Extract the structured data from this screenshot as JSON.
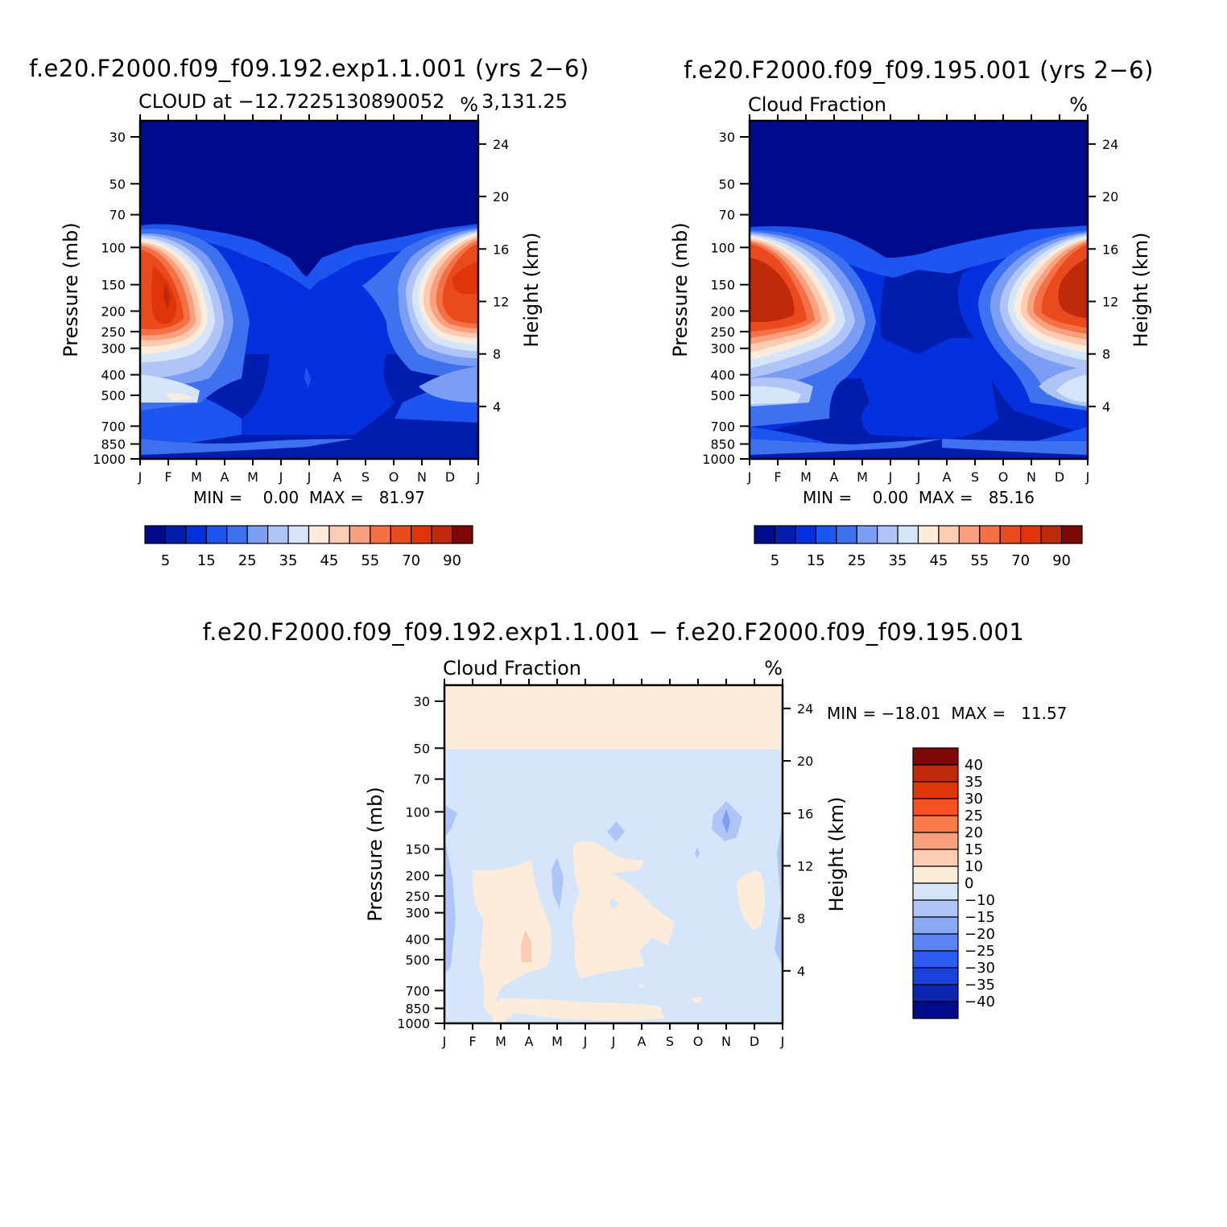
{
  "panels": {
    "top_left": {
      "title": "f.e20.F2000.f09_f09.192.exp1.1.001 (yrs 2−6)",
      "subtitle": "CLOUD at −12.7225130890052",
      "subtitle_extra": "3,131.25",
      "units": "%",
      "min_max": "MIN =    0.00  MAX =   81.97"
    },
    "top_right": {
      "title": "f.e20.F2000.f09_f09.195.001 (yrs 2−6)",
      "subtitle": "Cloud Fraction",
      "units": "%",
      "min_max": "MIN =    0.00  MAX =   85.16"
    },
    "bottom": {
      "title": "f.e20.F2000.f09_f09.192.exp1.1.001 − f.e20.F2000.f09_f09.195.001",
      "subtitle": "Cloud Fraction",
      "units": "%",
      "min_max": "MIN = −18.01  MAX =   11.57"
    }
  },
  "chart_data": [
    {
      "type": "heatmap",
      "title": "f.e20.F2000.f09_f09.192.exp1.1.001 (yrs 2−6)",
      "ylabel": "Pressure (mb)",
      "y2label": "Height (km)",
      "x_ticks": [
        "J",
        "F",
        "M",
        "A",
        "M",
        "J",
        "J",
        "A",
        "S",
        "O",
        "N",
        "D",
        "J"
      ],
      "y_ticks": [
        "30",
        "50",
        "70",
        "100",
        "150",
        "200",
        "250",
        "300",
        "400",
        "500",
        "700",
        "850",
        "1000"
      ],
      "y2_ticks": [
        "24",
        "20",
        "16",
        "12",
        "8",
        "4"
      ],
      "legend_labels": [
        "5",
        "15",
        "25",
        "35",
        "45",
        "55",
        "70",
        "90"
      ],
      "min": 0.0,
      "max": 81.97
    },
    {
      "type": "heatmap",
      "title": "f.e20.F2000.f09_f09.195.001 (yrs 2−6)",
      "ylabel": "Pressure (mb)",
      "y2label": "Height (km)",
      "x_ticks": [
        "J",
        "F",
        "M",
        "A",
        "M",
        "J",
        "J",
        "A",
        "S",
        "O",
        "N",
        "D",
        "J"
      ],
      "y_ticks": [
        "30",
        "50",
        "70",
        "100",
        "150",
        "200",
        "250",
        "300",
        "400",
        "500",
        "700",
        "850",
        "1000"
      ],
      "y2_ticks": [
        "24",
        "20",
        "16",
        "12",
        "8",
        "4"
      ],
      "legend_labels": [
        "5",
        "15",
        "25",
        "35",
        "45",
        "55",
        "70",
        "90"
      ],
      "min": 0.0,
      "max": 85.16
    },
    {
      "type": "heatmap",
      "title": "f.e20.F2000.f09_f09.192.exp1.1.001 − f.e20.F2000.f09_f09.195.001",
      "ylabel": "Pressure (mb)",
      "y2label": "Height (km)",
      "x_ticks": [
        "J",
        "F",
        "M",
        "A",
        "M",
        "J",
        "J",
        "A",
        "S",
        "O",
        "N",
        "D",
        "J"
      ],
      "y_ticks": [
        "30",
        "50",
        "70",
        "100",
        "150",
        "200",
        "250",
        "300",
        "400",
        "500",
        "700",
        "850",
        "1000"
      ],
      "y2_ticks": [
        "24",
        "20",
        "16",
        "12",
        "8",
        "4"
      ],
      "legend_labels": [
        "40",
        "35",
        "30",
        "25",
        "20",
        "15",
        "10",
        "0",
        "−10",
        "−15",
        "−20",
        "−25",
        "−30",
        "−35",
        "−40"
      ],
      "min": -18.01,
      "max": 11.57
    }
  ],
  "colors": {
    "seq_scale": [
      "#000b8c",
      "#001dae",
      "#0430dd",
      "#1d55f0",
      "#3d71f0",
      "#7b9df3",
      "#afc5f8",
      "#d5e6fb",
      "#fdebdc",
      "#fccbb2",
      "#f9a17e",
      "#f47045",
      "#ea4a1e",
      "#e0350b",
      "#be2a0a",
      "#7d0805"
    ],
    "diff_scale": [
      "#7d0805",
      "#be2a0a",
      "#e0350b",
      "#fc5020",
      "#f77a48",
      "#f9a17e",
      "#fccbb2",
      "#fdebdc",
      "#d5e6fb",
      "#afc5f8",
      "#8aa9f5",
      "#5b84f2",
      "#2e5cf0",
      "#1a40e0",
      "#0c25b0",
      "#000b8c"
    ]
  }
}
